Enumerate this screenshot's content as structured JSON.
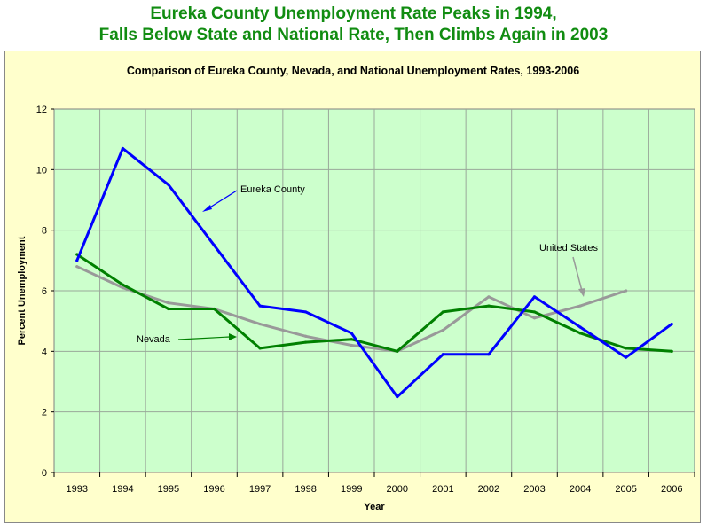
{
  "header": {
    "title_line1": "Eureka County Unemployment Rate Peaks in 1994,",
    "title_line2": "Falls Below State and National Rate, Then Climbs Again in 2003"
  },
  "chart_data": {
    "type": "line",
    "title": "Comparison of Eureka County, Nevada, and National Unemployment Rates, 1993-2006",
    "xlabel": "Year",
    "ylabel": "Percent Unemployment",
    "categories": [
      "1993",
      "1994",
      "1995",
      "1996",
      "1997",
      "1998",
      "1999",
      "2000",
      "2001",
      "2002",
      "2003",
      "2004",
      "2005",
      "2006"
    ],
    "ylim": [
      0,
      12
    ],
    "yticks": [
      0,
      2,
      4,
      6,
      8,
      10,
      12
    ],
    "grid": true,
    "series": [
      {
        "name": "Eureka County",
        "color": "#0000ff",
        "values": [
          7.0,
          10.7,
          9.5,
          7.5,
          5.5,
          5.3,
          4.6,
          2.5,
          3.9,
          3.9,
          5.8,
          4.8,
          3.8,
          4.9
        ]
      },
      {
        "name": "Nevada",
        "color": "#008000",
        "values": [
          7.2,
          6.2,
          5.4,
          5.4,
          4.1,
          4.3,
          4.4,
          4.0,
          5.3,
          5.5,
          5.3,
          4.6,
          4.1,
          4.0
        ]
      },
      {
        "name": "United States",
        "color": "#999999",
        "values": [
          6.8,
          6.1,
          5.6,
          5.4,
          4.9,
          4.5,
          4.2,
          4.0,
          4.7,
          5.8,
          5.1,
          5.5,
          6.0,
          null
        ]
      }
    ],
    "annotations": [
      "Eureka County",
      "Nevada",
      "United States"
    ],
    "colors": {
      "plot_background": "#ccffcc",
      "frame_background": "#ffffcc",
      "title": "#118c11"
    }
  }
}
